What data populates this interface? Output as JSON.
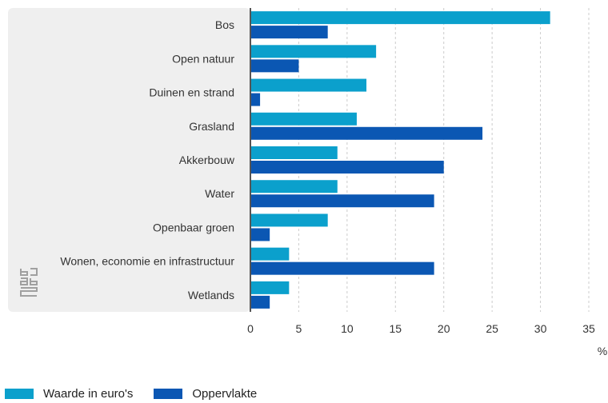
{
  "chart_data": {
    "type": "bar",
    "orientation": "horizontal",
    "categories": [
      "Bos",
      "Open natuur",
      "Duinen en strand",
      "Grasland",
      "Akkerbouw",
      "Water",
      "Openbaar groen",
      "Wonen, economie en infrastructuur",
      "Wetlands"
    ],
    "series": [
      {
        "name": "Waarde in euro's",
        "color": "#0ba0cc",
        "values": [
          31,
          13,
          12,
          11,
          9,
          9,
          8,
          4,
          4
        ]
      },
      {
        "name": "Oppervlakte",
        "color": "#0b57b3",
        "values": [
          8,
          5,
          1,
          24,
          20,
          19,
          2,
          19,
          2
        ]
      }
    ],
    "x_ticks": [
      0,
      5,
      10,
      15,
      20,
      25,
      30,
      35
    ],
    "xlim": [
      0,
      35
    ],
    "x_unit": "%",
    "grid": "vertical dashed",
    "legend_position": "bottom-left"
  },
  "logo": {
    "icon": "cbs-logo-icon",
    "color": "#a0a0a0"
  },
  "colors": {
    "label_background": "#efefef",
    "baseline": "#555555",
    "grid": "#cccccc"
  }
}
